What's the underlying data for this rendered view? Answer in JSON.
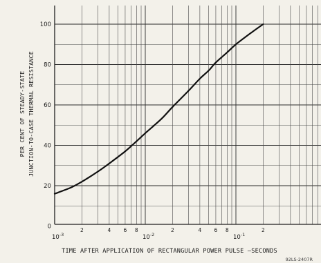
{
  "chart_data": {
    "type": "line",
    "xscale": "log",
    "xlim": [
      0.001,
      0.2
    ],
    "ylim": [
      0,
      110
    ],
    "grid": true,
    "xlabel": "TIME AFTER APPLICATION OF RECTANGULAR POWER PULSE —SECONDS",
    "ylabel_lines": [
      "PER CENT OF STEADY-STATE",
      "JUNCTION-TO-CASE THERMAL RESISTANCE"
    ],
    "y_ticks": [
      {
        "value": 0,
        "label": "0"
      },
      {
        "value": 20,
        "label": "20"
      },
      {
        "value": 40,
        "label": "40"
      },
      {
        "value": 60,
        "label": "60"
      },
      {
        "value": 80,
        "label": "80"
      },
      {
        "value": 100,
        "label": "100"
      }
    ],
    "x_ticks": [
      {
        "value": 0.001,
        "base": "10",
        "exp": "-3",
        "label": ""
      },
      {
        "value": 0.002,
        "label": "2"
      },
      {
        "value": 0.004,
        "label": "4"
      },
      {
        "value": 0.006,
        "label": "6"
      },
      {
        "value": 0.008,
        "label": "8"
      },
      {
        "value": 0.01,
        "base": "10",
        "exp": "-2",
        "label": ""
      },
      {
        "value": 0.02,
        "label": "2"
      },
      {
        "value": 0.04,
        "label": "4"
      },
      {
        "value": 0.06,
        "label": "6"
      },
      {
        "value": 0.08,
        "label": "8"
      },
      {
        "value": 0.1,
        "base": "10",
        "exp": "-1",
        "label": ""
      },
      {
        "value": 0.2,
        "label": "2"
      }
    ],
    "series": [
      {
        "x": [
          0.001,
          0.0015,
          0.002,
          0.003,
          0.004,
          0.006,
          0.008,
          0.01,
          0.015,
          0.02,
          0.03,
          0.04,
          0.05,
          0.06,
          0.08,
          0.1,
          0.15,
          0.2
        ],
        "y": [
          16,
          19,
          22,
          27,
          31,
          37,
          42,
          46,
          53,
          59,
          67,
          73,
          77,
          81,
          86,
          90,
          96,
          100
        ]
      }
    ],
    "figure_id": "92LS-2407R"
  }
}
